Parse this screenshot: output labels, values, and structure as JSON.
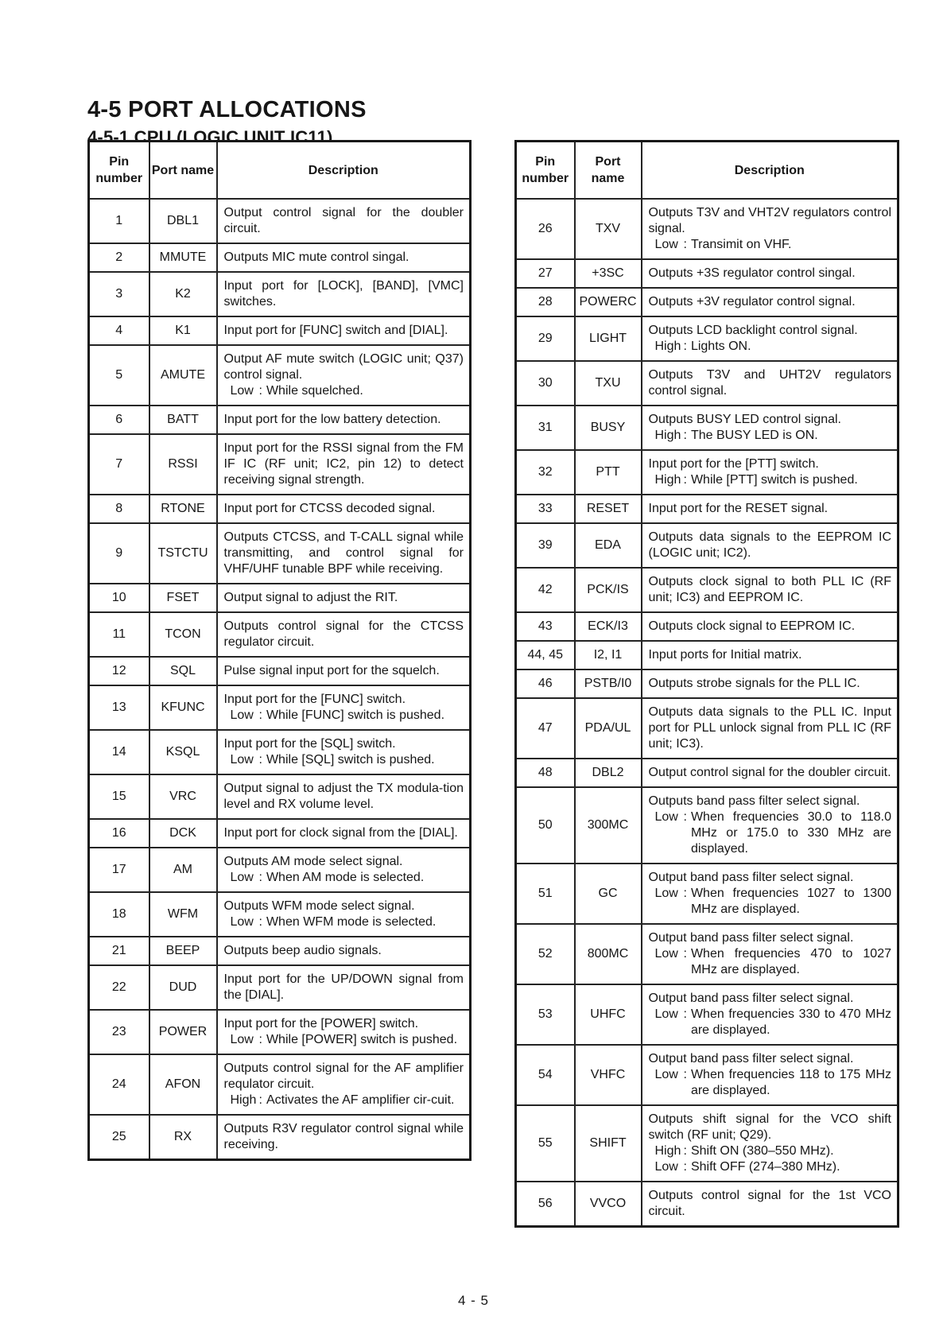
{
  "page": {
    "title": "4-5 PORT ALLOCATIONS",
    "subtitle": "4-5-1 CPU (LOGIC UNIT IC11)",
    "footer_page_number": "4 - 5"
  },
  "headers": {
    "pin": "Pin number",
    "port": "Port name",
    "description": "Description"
  },
  "left_table": {
    "rows": [
      {
        "pin": "1",
        "port": "DBL1",
        "desc": [
          {
            "text": "Output control signal for the doubler circuit."
          }
        ]
      },
      {
        "pin": "2",
        "port": "MMUTE",
        "desc": [
          {
            "text": "Outputs MIC mute control singal."
          }
        ]
      },
      {
        "pin": "3",
        "port": "K2",
        "desc": [
          {
            "text": "Input port for [LOCK], [BAND], [VMC] switches."
          }
        ]
      },
      {
        "pin": "4",
        "port": "K1",
        "desc": [
          {
            "text": "Input port for [FUNC] switch and [DIAL]."
          }
        ]
      },
      {
        "pin": "5",
        "port": "AMUTE",
        "desc": [
          {
            "text": "Output AF mute switch (LOGIC unit; Q37) control signal."
          },
          {
            "label": "Low",
            "text": "While squelched."
          }
        ]
      },
      {
        "pin": "6",
        "port": "BATT",
        "desc": [
          {
            "text": "Input port for the low battery detection."
          }
        ]
      },
      {
        "pin": "7",
        "port": "RSSI",
        "desc": [
          {
            "text": "Input port for the RSSI signal from the FM IF IC (RF unit; IC2, pin 12) to detect receiving signal strength."
          }
        ]
      },
      {
        "pin": "8",
        "port": "RTONE",
        "desc": [
          {
            "text": "Input port for CTCSS decoded signal."
          }
        ]
      },
      {
        "pin": "9",
        "port": "TSTCTU",
        "desc": [
          {
            "text": "Outputs CTCSS, and T-CALL signal while transmitting, and control signal for VHF/UHF tunable BPF while receiving."
          }
        ]
      },
      {
        "pin": "10",
        "port": "FSET",
        "desc": [
          {
            "text": "Output signal to adjust the RIT."
          }
        ]
      },
      {
        "pin": "11",
        "port": "TCON",
        "desc": [
          {
            "text": "Outputs control signal for the CTCSS regulator circuit."
          }
        ]
      },
      {
        "pin": "12",
        "port": "SQL",
        "desc": [
          {
            "text": "Pulse signal input port for the squelch."
          }
        ]
      },
      {
        "pin": "13",
        "port": "KFUNC",
        "desc": [
          {
            "text": "Input port for the [FUNC] switch."
          },
          {
            "label": "Low",
            "text": "While [FUNC] switch is pushed."
          }
        ]
      },
      {
        "pin": "14",
        "port": "KSQL",
        "desc": [
          {
            "text": "Input port for the [SQL] switch."
          },
          {
            "label": "Low",
            "text": "While [SQL] switch is pushed."
          }
        ]
      },
      {
        "pin": "15",
        "port": "VRC",
        "desc": [
          {
            "text": "Output signal to adjust the TX modula-tion level and RX volume level."
          }
        ]
      },
      {
        "pin": "16",
        "port": "DCK",
        "desc": [
          {
            "text": "Input port for clock signal from the [DIAL]."
          }
        ]
      },
      {
        "pin": "17",
        "port": "AM",
        "desc": [
          {
            "text": "Outputs AM mode select signal."
          },
          {
            "label": "Low",
            "text": "When AM mode is selected."
          }
        ]
      },
      {
        "pin": "18",
        "port": "WFM",
        "desc": [
          {
            "text": "Outputs WFM mode select signal."
          },
          {
            "label": "Low",
            "text": "When WFM mode is selected."
          }
        ]
      },
      {
        "pin": "21",
        "port": "BEEP",
        "desc": [
          {
            "text": "Outputs beep audio signals."
          }
        ]
      },
      {
        "pin": "22",
        "port": "DUD",
        "desc": [
          {
            "text": "Input port for the UP/DOWN signal from the [DIAL]."
          }
        ]
      },
      {
        "pin": "23",
        "port": "POWER",
        "desc": [
          {
            "text": "Input port for the [POWER] switch."
          },
          {
            "label": "Low",
            "text": "While [POWER] switch is pushed."
          }
        ]
      },
      {
        "pin": "24",
        "port": "AFON",
        "desc": [
          {
            "text": "Outputs control signal for the AF amplifier requlator circuit."
          },
          {
            "label": "High",
            "text": "Activates the AF amplifier cir-cuit."
          }
        ]
      },
      {
        "pin": "25",
        "port": "RX",
        "desc": [
          {
            "text": "Outputs R3V regulator control signal while receiving."
          }
        ]
      }
    ]
  },
  "right_table": {
    "rows": [
      {
        "pin": "26",
        "port": "TXV",
        "desc": [
          {
            "text": "Outputs T3V and VHT2V regulators control signal."
          },
          {
            "label": "Low",
            "text": "Transimit on VHF."
          }
        ]
      },
      {
        "pin": "27",
        "port": "+3SC",
        "desc": [
          {
            "text": "Outputs +3S regulator control singal."
          }
        ]
      },
      {
        "pin": "28",
        "port": "POWERC",
        "desc": [
          {
            "text": "Outputs +3V regulator control signal."
          }
        ]
      },
      {
        "pin": "29",
        "port": "LIGHT",
        "desc": [
          {
            "text": "Outputs LCD backlight control signal."
          },
          {
            "label": "High",
            "text": "Lights ON."
          }
        ]
      },
      {
        "pin": "30",
        "port": "TXU",
        "desc": [
          {
            "text": "Outputs T3V and UHT2V regulators control signal."
          }
        ]
      },
      {
        "pin": "31",
        "port": "BUSY",
        "desc": [
          {
            "text": "Outputs BUSY LED control signal."
          },
          {
            "label": "High",
            "text": "The BUSY LED is ON."
          }
        ]
      },
      {
        "pin": "32",
        "port": "PTT",
        "desc": [
          {
            "text": "Input port for the [PTT] switch."
          },
          {
            "label": "High",
            "text": "While [PTT] switch is pushed."
          }
        ]
      },
      {
        "pin": "33",
        "port": "RESET",
        "desc": [
          {
            "text": "Input port for the RESET signal."
          }
        ]
      },
      {
        "pin": "39",
        "port": "EDA",
        "desc": [
          {
            "text": "Outputs data signals to the EEPROM IC (LOGIC unit; IC2)."
          }
        ]
      },
      {
        "pin": "42",
        "port": "PCK/IS",
        "desc": [
          {
            "text": "Outputs clock signal to both PLL IC (RF unit; IC3) and EEPROM IC."
          }
        ]
      },
      {
        "pin": "43",
        "port": "ECK/I3",
        "desc": [
          {
            "text": "Outputs clock signal to EEPROM IC."
          }
        ]
      },
      {
        "pin": "44, 45",
        "port": "I2, I1",
        "desc": [
          {
            "text": "Input ports for Initial matrix."
          }
        ]
      },
      {
        "pin": "46",
        "port": "PSTB/I0",
        "desc": [
          {
            "text": "Outputs strobe signals for the PLL IC."
          }
        ]
      },
      {
        "pin": "47",
        "port": "PDA/UL",
        "desc": [
          {
            "text": "Outputs data signals to the PLL IC. Input port for PLL unlock signal from PLL IC (RF unit; IC3)."
          }
        ]
      },
      {
        "pin": "48",
        "port": "DBL2",
        "desc": [
          {
            "text": "Output control signal for the doubler circuit."
          }
        ]
      },
      {
        "pin": "50",
        "port": "300MC",
        "desc": [
          {
            "text": "Outputs band pass filter select signal."
          },
          {
            "label": "Low",
            "text": "When frequencies 30.0 to 118.0 MHz or 175.0 to 330 MHz are displayed."
          }
        ]
      },
      {
        "pin": "51",
        "port": "GC",
        "desc": [
          {
            "text": "Output band pass filter select signal."
          },
          {
            "label": "Low",
            "text": "When frequencies 1027 to 1300 MHz are displayed."
          }
        ]
      },
      {
        "pin": "52",
        "port": "800MC",
        "desc": [
          {
            "text": "Output band pass filter select signal."
          },
          {
            "label": "Low",
            "text": "When frequencies 470 to 1027 MHz are displayed."
          }
        ]
      },
      {
        "pin": "53",
        "port": "UHFC",
        "desc": [
          {
            "text": "Output band pass filter select signal."
          },
          {
            "label": "Low",
            "text": "When frequencies 330 to 470 MHz are displayed."
          }
        ]
      },
      {
        "pin": "54",
        "port": "VHFC",
        "desc": [
          {
            "text": "Output band pass filter select signal."
          },
          {
            "label": "Low",
            "text": "When frequencies 118 to 175 MHz are displayed."
          }
        ]
      },
      {
        "pin": "55",
        "port": "SHIFT",
        "desc": [
          {
            "text": "Outputs shift signal for the VCO shift switch (RF unit; Q29)."
          },
          {
            "label": "High",
            "text": "Shift ON (380–550 MHz)."
          },
          {
            "label": "Low",
            "text": "Shift OFF (274–380 MHz)."
          }
        ]
      },
      {
        "pin": "56",
        "port": "VVCO",
        "desc": [
          {
            "text": "Outputs control signal for the 1st VCO circuit."
          }
        ]
      }
    ]
  }
}
